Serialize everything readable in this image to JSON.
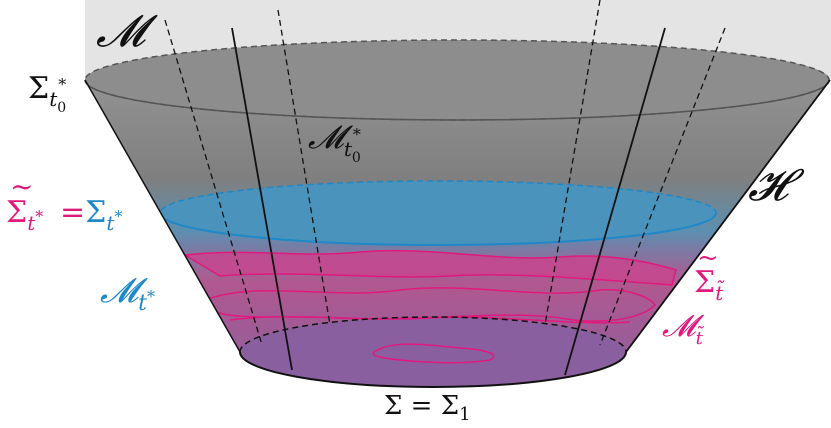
{
  "labels": {
    "manifold": {
      "sym": "𝓜",
      "color": "#111111"
    },
    "horizon": {
      "sym": "𝓗",
      "color": "#111111"
    },
    "sigma_t0_star": {
      "base": "Σ",
      "sub": "t",
      "subsub": "0",
      "sup": "*",
      "color": "#111111"
    },
    "m_t0_star": {
      "base": "𝓜",
      "sub": "t",
      "subsub": "0",
      "sup": "*",
      "color": "#111111"
    },
    "sigma_tilde_eq": {
      "tilde": "~",
      "base": "Σ",
      "sub": "t",
      "sup": "*",
      "eq": "=",
      "base2": "Σ",
      "sub2": "t",
      "sup2": "*",
      "color_left": "#e0197d",
      "color_right": "#1f88c8"
    },
    "m_t_star": {
      "base": "𝓜",
      "sub": "t",
      "sup": "*",
      "color": "#1f88c8"
    },
    "sigma_tilde_t": {
      "tilde": "~",
      "base": "Σ",
      "sub": "t̃",
      "color": "#e0197d"
    },
    "m_tilde_t": {
      "base": "𝓜",
      "sub": "t̃",
      "color": "#e0197d"
    },
    "sigma_eq_sigma1": {
      "text": "Σ = Σ",
      "sub": "1",
      "color": "#111111"
    }
  },
  "colors": {
    "manifold_bg": "#e4e4e4",
    "gray_region": "#8f8f8f",
    "blue_disk": "#4a93bd",
    "magenta_band": "#c8458e",
    "purple_base": "#8a5f9f",
    "accent_blue": "#1f88c8",
    "accent_magenta": "#e0197d"
  }
}
